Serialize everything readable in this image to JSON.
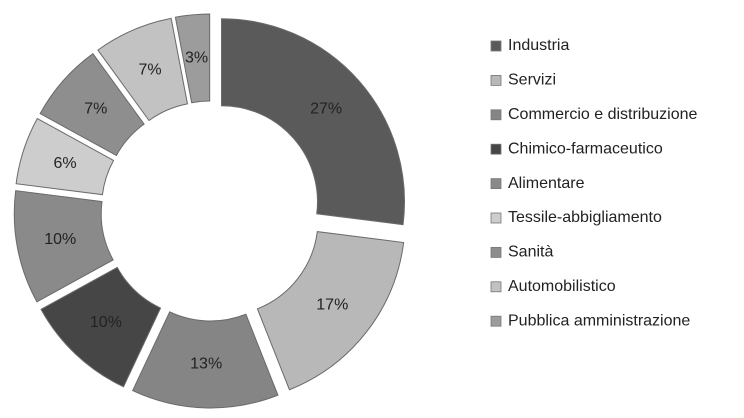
{
  "chart_data": {
    "type": "pie",
    "donut": true,
    "categories": [
      "Industria",
      "Servizi",
      "Commercio e distribuzione",
      "Chimico-farmaceutico",
      "Alimentare",
      "Tessile-abbigliamento",
      "Sanità",
      "Automobilistico",
      "Pubblica amministrazione"
    ],
    "values": [
      27,
      17,
      13,
      10,
      10,
      6,
      7,
      7,
      3
    ],
    "value_labels": [
      "27%",
      "17%",
      "13%",
      "10%",
      "10%",
      "6%",
      "7%",
      "7%",
      "3%"
    ],
    "colors": [
      "#5a5a5a",
      "#b8b8b8",
      "#858585",
      "#464646",
      "#8a8a8a",
      "#cdcdcd",
      "#8e8e8e",
      "#c2c2c2",
      "#9c9c9c"
    ],
    "legend": "right"
  }
}
